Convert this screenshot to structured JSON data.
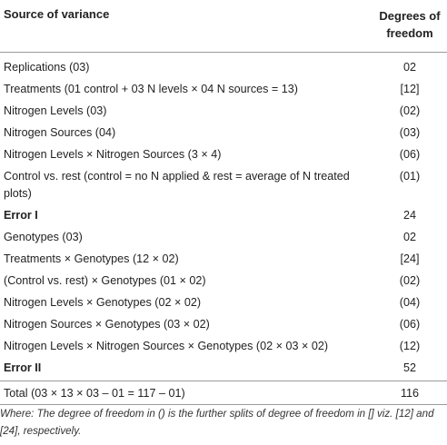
{
  "table": {
    "header": {
      "source": "Source of variance",
      "df": "Degrees of freedom"
    },
    "rows": [
      {
        "source": "Replications (03)",
        "df": "02",
        "bold": false
      },
      {
        "source": "Treatments (01 control + 03 N levels × 04 N sources = 13)",
        "df": "[12]",
        "bold": false
      },
      {
        "source": "Nitrogen Levels (03)",
        "df": "(02)",
        "bold": false
      },
      {
        "source": "Nitrogen Sources (04)",
        "df": "(03)",
        "bold": false
      },
      {
        "source": "Nitrogen Levels × Nitrogen Sources (3 × 4)",
        "df": "(06)",
        "bold": false
      },
      {
        "source": "Control vs. rest (control = no N applied & rest = average of N treated plots)",
        "df": "(01)",
        "bold": false
      },
      {
        "source": "Error I",
        "df": "24",
        "bold": true
      },
      {
        "source": "Genotypes (03)",
        "df": "02",
        "bold": false
      },
      {
        "source": "Treatments × Genotypes (12 × 02)",
        "df": "[24]",
        "bold": false
      },
      {
        "source": "(Control vs. rest) × Genotypes (01 × 02)",
        "df": "(02)",
        "bold": false
      },
      {
        "source": "Nitrogen Levels × Genotypes (02 × 02)",
        "df": "(04)",
        "bold": false
      },
      {
        "source": "Nitrogen Sources × Genotypes (03 × 02)",
        "df": "(06)",
        "bold": false
      },
      {
        "source": "Nitrogen Levels × Nitrogen Sources × Genotypes (02 × 03 × 02)",
        "df": "(12)",
        "bold": false
      },
      {
        "source": "Error II",
        "df": "52",
        "bold": true
      },
      {
        "source": "Total (03 × 13 × 03 – 01 = 117 – 01)",
        "df": "116",
        "bold": false
      }
    ]
  },
  "footnote": "Where: The degree of freedom in () is the further splits of degree of freedom in [] viz. [12] and [24], respectively."
}
